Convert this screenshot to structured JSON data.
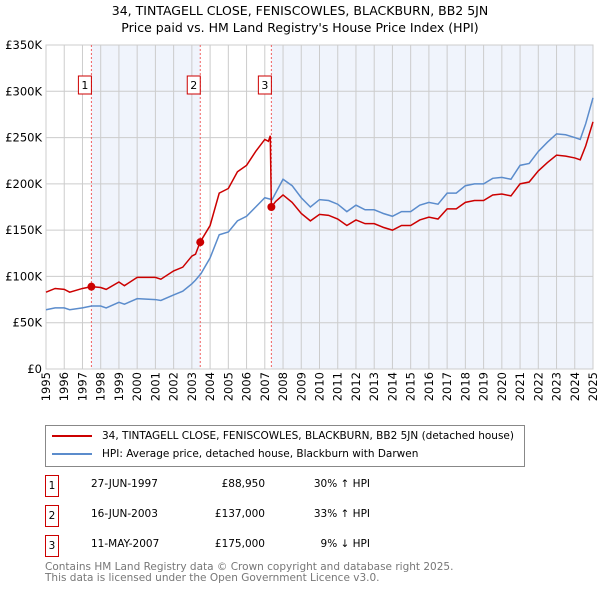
{
  "chart_data": {
    "type": "line",
    "title": "34, TINTAGELL CLOSE, FENISCOWLES, BLACKBURN, BB2 5JN",
    "subtitle": "Price paid vs. HM Land Registry's House Price Index (HPI)",
    "xlim": [
      1995,
      2025
    ],
    "ylim": [
      0,
      350000
    ],
    "y_ticks": [
      {
        "v": 0,
        "label": "£0"
      },
      {
        "v": 50000,
        "label": "£50K"
      },
      {
        "v": 100000,
        "label": "£100K"
      },
      {
        "v": 150000,
        "label": "£150K"
      },
      {
        "v": 200000,
        "label": "£200K"
      },
      {
        "v": 250000,
        "label": "£250K"
      },
      {
        "v": 300000,
        "label": "£300K"
      },
      {
        "v": 350000,
        "label": "£350K"
      }
    ],
    "x_ticks": [
      "1995",
      "1996",
      "1997",
      "1998",
      "1999",
      "2000",
      "2001",
      "2002",
      "2003",
      "2004",
      "2005",
      "2006",
      "2007",
      "2008",
      "2009",
      "2010",
      "2011",
      "2012",
      "2013",
      "2014",
      "2015",
      "2016",
      "2017",
      "2018",
      "2019",
      "2020",
      "2021",
      "2022",
      "2023",
      "2024",
      "2025"
    ],
    "grid": true,
    "series": [
      {
        "name": "34, TINTAGELL CLOSE, FENISCOWLES, BLACKBURN, BB2 5JN (detached house)",
        "color": "#cc0000",
        "points": [
          [
            1995,
            83
          ],
          [
            1995.5,
            87
          ],
          [
            1996,
            86
          ],
          [
            1996.3,
            83
          ],
          [
            1997,
            87
          ],
          [
            1997.5,
            89
          ],
          [
            1998,
            88
          ],
          [
            1998.3,
            86
          ],
          [
            1999,
            94
          ],
          [
            1999.3,
            90
          ],
          [
            2000,
            99
          ],
          [
            2001,
            99
          ],
          [
            2001.3,
            97
          ],
          [
            2002,
            106
          ],
          [
            2002.5,
            110
          ],
          [
            2003,
            122
          ],
          [
            2003.2,
            124
          ],
          [
            2003.45,
            137
          ],
          [
            2004,
            155
          ],
          [
            2004.5,
            190
          ],
          [
            2005,
            195
          ],
          [
            2005.5,
            213
          ],
          [
            2006,
            220
          ],
          [
            2006.5,
            235
          ],
          [
            2007,
            248
          ],
          [
            2007.2,
            246
          ],
          [
            2007.3,
            252
          ],
          [
            2007.36,
            175
          ],
          [
            2007.6,
            181
          ],
          [
            2008,
            188
          ],
          [
            2008.5,
            180
          ],
          [
            2009,
            168
          ],
          [
            2009.5,
            160
          ],
          [
            2010,
            167
          ],
          [
            2010.5,
            166
          ],
          [
            2011,
            162
          ],
          [
            2011.5,
            155
          ],
          [
            2012,
            161
          ],
          [
            2012.5,
            157
          ],
          [
            2013,
            157
          ],
          [
            2013.5,
            153
          ],
          [
            2014,
            150
          ],
          [
            2014.5,
            155
          ],
          [
            2015,
            155
          ],
          [
            2015.5,
            161
          ],
          [
            2016,
            164
          ],
          [
            2016.5,
            162
          ],
          [
            2017,
            173
          ],
          [
            2017.5,
            173
          ],
          [
            2018,
            180
          ],
          [
            2018.5,
            182
          ],
          [
            2019,
            182
          ],
          [
            2019.5,
            188
          ],
          [
            2020,
            189
          ],
          [
            2020.5,
            187
          ],
          [
            2021,
            200
          ],
          [
            2021.5,
            202
          ],
          [
            2022,
            214
          ],
          [
            2022.5,
            223
          ],
          [
            2023,
            231
          ],
          [
            2023.5,
            230
          ],
          [
            2024,
            228
          ],
          [
            2024.3,
            226
          ],
          [
            2024.6,
            241
          ],
          [
            2025,
            267
          ]
        ]
      },
      {
        "name": "HPI: Average price, detached house, Blackburn with Darwen",
        "color": "#5b8ccc",
        "points": [
          [
            1995,
            64
          ],
          [
            1995.5,
            66
          ],
          [
            1996,
            66
          ],
          [
            1996.3,
            64
          ],
          [
            1997,
            66
          ],
          [
            1997.5,
            68
          ],
          [
            1998,
            68
          ],
          [
            1998.3,
            66
          ],
          [
            1999,
            72
          ],
          [
            1999.3,
            70
          ],
          [
            2000,
            76
          ],
          [
            2001,
            75
          ],
          [
            2001.3,
            74
          ],
          [
            2002,
            80
          ],
          [
            2002.5,
            84
          ],
          [
            2003,
            92
          ],
          [
            2003.2,
            96
          ],
          [
            2003.5,
            103
          ],
          [
            2004,
            120
          ],
          [
            2004.5,
            145
          ],
          [
            2005,
            148
          ],
          [
            2005.5,
            160
          ],
          [
            2006,
            165
          ],
          [
            2006.5,
            175
          ],
          [
            2007,
            185
          ],
          [
            2007.4,
            183
          ],
          [
            2008,
            205
          ],
          [
            2008.5,
            198
          ],
          [
            2009,
            185
          ],
          [
            2009.5,
            175
          ],
          [
            2010,
            183
          ],
          [
            2010.5,
            182
          ],
          [
            2011,
            178
          ],
          [
            2011.5,
            170
          ],
          [
            2012,
            177
          ],
          [
            2012.5,
            172
          ],
          [
            2013,
            172
          ],
          [
            2013.5,
            168
          ],
          [
            2014,
            165
          ],
          [
            2014.5,
            170
          ],
          [
            2015,
            170
          ],
          [
            2015.5,
            177
          ],
          [
            2016,
            180
          ],
          [
            2016.5,
            178
          ],
          [
            2017,
            190
          ],
          [
            2017.5,
            190
          ],
          [
            2018,
            198
          ],
          [
            2018.5,
            200
          ],
          [
            2019,
            200
          ],
          [
            2019.5,
            206
          ],
          [
            2020,
            207
          ],
          [
            2020.5,
            205
          ],
          [
            2021,
            220
          ],
          [
            2021.5,
            222
          ],
          [
            2022,
            235
          ],
          [
            2022.5,
            245
          ],
          [
            2023,
            254
          ],
          [
            2023.5,
            253
          ],
          [
            2024,
            250
          ],
          [
            2024.3,
            248
          ],
          [
            2024.6,
            265
          ],
          [
            2025,
            293
          ]
        ]
      }
    ],
    "point_units": "thousand GBP",
    "sales": [
      {
        "n": "1",
        "x": 1997.49,
        "value": 88950,
        "date": "27-JUN-1997",
        "price": "£88,950",
        "hpi": "30% ↑ HPI"
      },
      {
        "n": "2",
        "x": 2003.46,
        "value": 137000,
        "date": "16-JUN-2003",
        "price": "£137,000",
        "hpi": "33% ↑ HPI"
      },
      {
        "n": "3",
        "x": 2007.36,
        "value": 175000,
        "date": "11-MAY-2007",
        "price": "£175,000",
        "hpi": "9% ↓ HPI"
      }
    ],
    "legend": "below"
  },
  "footer": [
    "Contains HM Land Registry data © Crown copyright and database right 2025.",
    "This data is licensed under the Open Government Licence v3.0."
  ]
}
